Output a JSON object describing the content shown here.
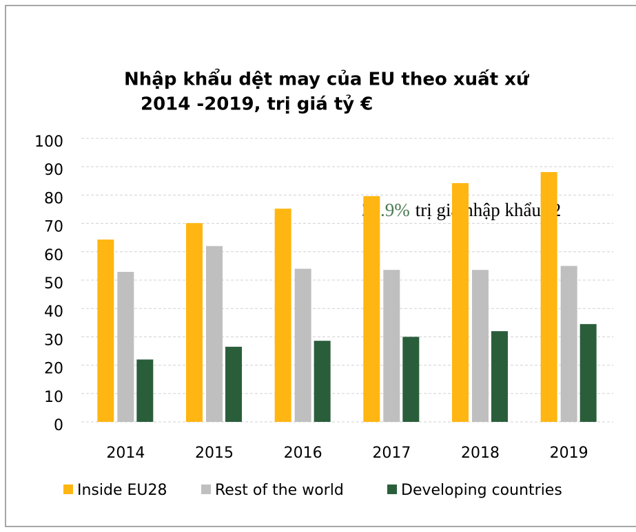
{
  "chart_data": {
    "type": "bar",
    "title": [
      "Nhập khẩu dệt may của EU theo xuất xứ",
      "2014   -2019, trị giá tỷ  €"
    ],
    "categories": [
      "2014",
      "2015",
      "2016",
      "2017",
      "2018",
      "2019"
    ],
    "series": [
      {
        "name": "Inside EU28",
        "color": "#ffb612",
        "values": [
          64.3,
          70.1,
          75.2,
          79.6,
          84.2,
          88.1
        ]
      },
      {
        "name": "Rest of the world",
        "color": "#bfbfbf",
        "values": [
          52.9,
          62,
          54,
          53.6,
          53.6,
          55
        ]
      },
      {
        "name": "Developing countries",
        "color": "#2a5e3b",
        "values": [
          22,
          26.5,
          28.6,
          30,
          32,
          34.5
        ]
      }
    ],
    "annotations": [
      "20.9%",
      "trị giá nhập khẩu (2"
    ],
    "ylim": [
      0,
      100
    ],
    "yticks": [
      0,
      10,
      20,
      30,
      40,
      50,
      60,
      70,
      80,
      90,
      100
    ],
    "grid": true,
    "legend": "bottom"
  }
}
